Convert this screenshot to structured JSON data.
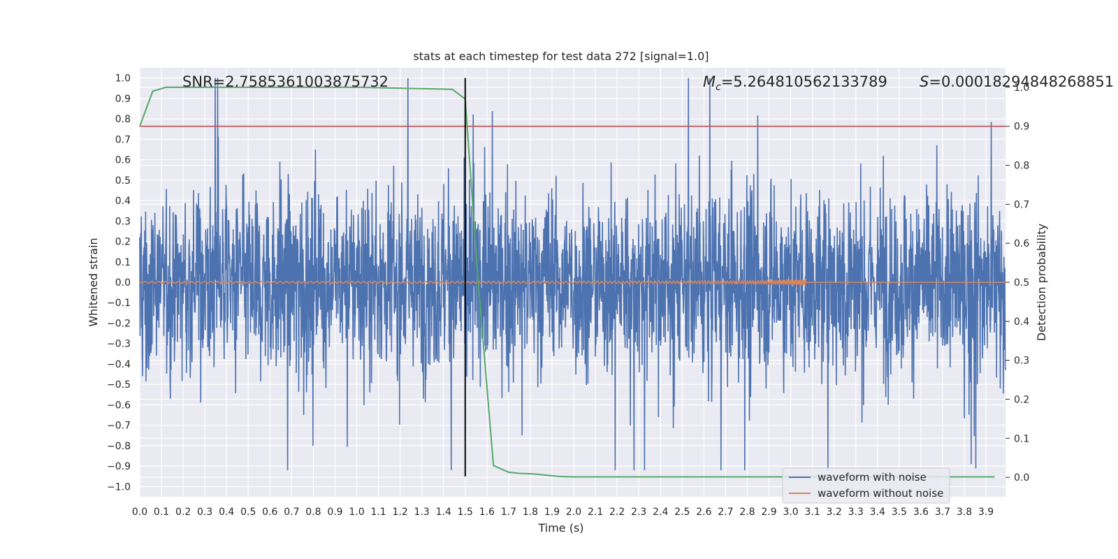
{
  "chart_data": {
    "type": "line",
    "title": "stats at each timestep for test data 272 [signal=1.0]",
    "xlabel": "Time (s)",
    "ylabel": "Whitened strain",
    "y2label": "Detection probability",
    "xlim": [
      0.0,
      3.99
    ],
    "ylim": [
      -1.05,
      1.05
    ],
    "y2lim": [
      -0.05,
      1.05
    ],
    "x_ticks": [
      0.0,
      0.1,
      0.2,
      0.3,
      0.4,
      0.5,
      0.6,
      0.7,
      0.8,
      0.9,
      1.0,
      1.1,
      1.2,
      1.3,
      1.4,
      1.5,
      1.6,
      1.7,
      1.8,
      1.9,
      2.0,
      2.1,
      2.2,
      2.3,
      2.4,
      2.5,
      2.6,
      2.7,
      2.8,
      2.9,
      3.0,
      3.1,
      3.2,
      3.3,
      3.4,
      3.5,
      3.6,
      3.7,
      3.8,
      3.9
    ],
    "y_ticks": [
      1.0,
      0.9,
      0.8,
      0.7,
      0.6,
      0.5,
      0.4,
      0.3,
      0.2,
      0.1,
      0.0,
      -0.1,
      -0.2,
      -0.3,
      -0.4,
      -0.5,
      -0.6,
      -0.7,
      -0.8,
      -0.9,
      -1.0
    ],
    "y2_ticks": [
      1.0,
      0.9,
      0.8,
      0.7,
      0.6,
      0.5,
      0.4,
      0.3,
      0.2,
      0.1,
      0.0
    ],
    "annotations": {
      "snr": "SNR=2.7585361003875732",
      "mc_symbol": "M",
      "mc_sub": "c",
      "mc_value": "=5.264810562133789",
      "s_symbol": "S",
      "s_value": "=0.00018294848268851"
    },
    "grid": true,
    "legend_position": "lower-right",
    "colors": {
      "noise": "#4c72b0",
      "clean": "#dd8452",
      "probability": "#55a868",
      "threshold": "#c44e52",
      "marker": "#000000",
      "background": "#eaeaf2"
    },
    "series": [
      {
        "name": "waveform with noise",
        "axis": "left",
        "note": "dense noisy whitened strain, roughly within -0.9..1.0"
      },
      {
        "name": "waveform without noise",
        "axis": "left",
        "chirp_end_time": 3.07,
        "peak_amplitude": 0.05
      },
      {
        "name": "detection probability",
        "axis": "right",
        "x": [
          0.0,
          0.06,
          0.12,
          0.2,
          1.0,
          1.44,
          1.5,
          1.56,
          1.63,
          1.7,
          1.75,
          1.81,
          1.88,
          1.94,
          2.0,
          2.5,
          3.0,
          3.5,
          3.94
        ],
        "y": [
          0.9,
          0.99,
          1.0,
          1.0,
          1.0,
          0.995,
          0.97,
          0.5,
          0.03,
          0.013,
          0.01,
          0.009,
          0.005,
          0.002,
          0.001,
          0.001,
          0.001,
          0.001,
          0.001
        ]
      },
      {
        "name": "threshold",
        "axis": "right",
        "y": 0.9
      },
      {
        "name": "marker",
        "axis": "left",
        "x": 1.5
      }
    ],
    "legend": [
      "waveform with noise",
      "waveform without noise"
    ]
  }
}
